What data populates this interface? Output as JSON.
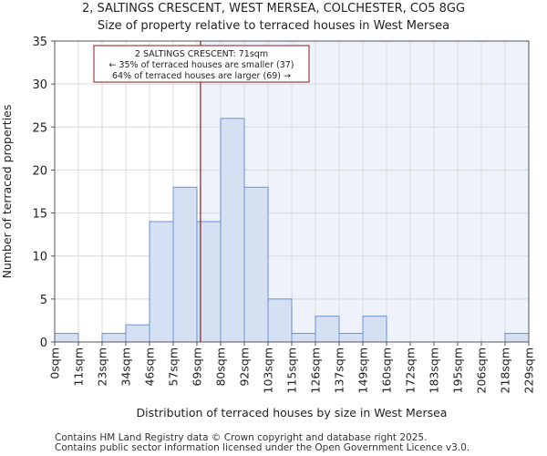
{
  "chart_data": {
    "type": "bar",
    "title": "2, SALTINGS CRESCENT, WEST MERSEA, COLCHESTER, CO5 8GG",
    "subtitle": "Size of property relative to terraced houses in West Mersea",
    "xlabel": "Distribution of terraced houses by size in West Mersea",
    "ylabel": "Number of terraced properties",
    "ylim": [
      0,
      35
    ],
    "yticks": [
      0,
      5,
      10,
      15,
      20,
      25,
      30,
      35
    ],
    "tick_labels": [
      "0sqm",
      "11sqm",
      "23sqm",
      "34sqm",
      "46sqm",
      "57sqm",
      "69sqm",
      "80sqm",
      "92sqm",
      "103sqm",
      "115sqm",
      "126sqm",
      "137sqm",
      "149sqm",
      "160sqm",
      "172sqm",
      "183sqm",
      "195sqm",
      "206sqm",
      "218sqm",
      "229sqm"
    ],
    "values": [
      1,
      0,
      1,
      2,
      14,
      18,
      14,
      26,
      18,
      5,
      1,
      3,
      1,
      3,
      0,
      0,
      0,
      0,
      0,
      1
    ],
    "property_size": 71,
    "property_bin_position": 6.15,
    "annotation": {
      "line1": "2 SALTINGS CRESCENT: 71sqm",
      "line2": "← 35% of terraced houses are smaller (37)",
      "line3": "64% of terraced houses are larger (69) →"
    },
    "colors": {
      "bar_fill": "#d6e0f3",
      "bar_stroke": "#6b8fd4",
      "marker": "#8b1a1a",
      "highlight_bg": "#eef2fb",
      "grid": "#d9d9d9"
    }
  },
  "footer": {
    "line1": "Contains HM Land Registry data © Crown copyright and database right 2025.",
    "line2": "Contains public sector information licensed under the Open Government Licence v3.0."
  }
}
